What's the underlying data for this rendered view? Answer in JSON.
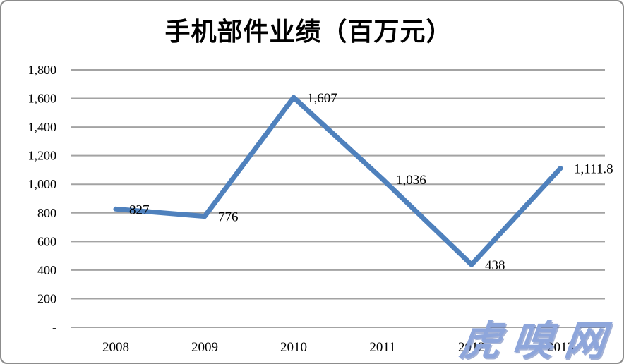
{
  "chart_data": {
    "type": "line",
    "title": "手机部件业绩（百万元）",
    "categories": [
      "2008",
      "2009",
      "2010",
      "2011",
      "2012",
      "2013"
    ],
    "values": [
      827,
      776,
      1607,
      1036,
      438,
      1111.8
    ],
    "data_labels": [
      "827",
      "776",
      "1,607",
      "1,036",
      "438",
      "1,111.8"
    ],
    "xlabel": "",
    "ylabel": "",
    "ylim": [
      0,
      1800
    ],
    "y_ticks": [
      {
        "value": 1800,
        "label": "1,800"
      },
      {
        "value": 1600,
        "label": "1,600"
      },
      {
        "value": 1400,
        "label": "1,400"
      },
      {
        "value": 1200,
        "label": "1,200"
      },
      {
        "value": 1000,
        "label": "1,000"
      },
      {
        "value": 800,
        "label": "800"
      },
      {
        "value": 600,
        "label": "600"
      },
      {
        "value": 400,
        "label": "400"
      },
      {
        "value": 200,
        "label": "200"
      },
      {
        "value": 0,
        "label": "-"
      }
    ],
    "grid": true,
    "legend": "none",
    "line_color": "#4F81BD",
    "grid_color": "#a3a3a3",
    "label_color": "#000000"
  },
  "watermark": {
    "text": "虎嗅网",
    "color": "#8EA6DB"
  }
}
